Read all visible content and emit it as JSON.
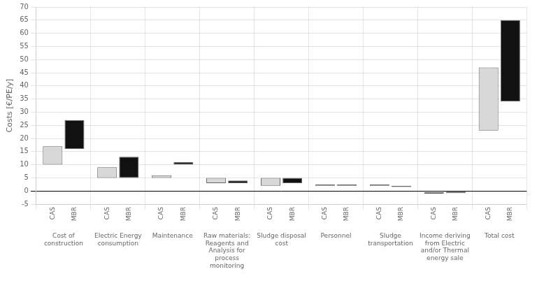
{
  "chart_data": {
    "type": "bar",
    "categories": [
      "Cost of\nconstruction",
      "Electric Energy\nconsumption",
      "Maintenance",
      "Raw materials:\nReagents and\nAnalysis for\nprocess\nmonitoring",
      "Sludge disposal\ncost",
      "Personnel",
      "Sludge\ntransportation",
      "Income deriving\nfrom Electric\nand/or Thermal\nenergy sale",
      "Total cost"
    ],
    "series": [
      {
        "name": "CAS",
        "color": "#d8d8d8",
        "values": [
          [
            10,
            17
          ],
          [
            5,
            9
          ],
          [
            5,
            6
          ],
          [
            3,
            5
          ],
          [
            2,
            5
          ],
          [
            2,
            2.5
          ],
          [
            2,
            2.5
          ],
          [
            -1.0,
            -0.5
          ],
          [
            23,
            47
          ]
        ]
      },
      {
        "name": "MBR",
        "color": "#111111",
        "values": [
          [
            16,
            27
          ],
          [
            5,
            13
          ],
          [
            10,
            11
          ],
          [
            3,
            4
          ],
          [
            3,
            5
          ],
          [
            2,
            2.5
          ],
          [
            1.5,
            2
          ],
          [
            -0.8,
            -0.3
          ],
          [
            34,
            65
          ]
        ]
      }
    ],
    "ylabel": "Costs [€/PE/y]",
    "ylim": [
      -5,
      70
    ],
    "yticks": [
      -5,
      0,
      5,
      10,
      15,
      20,
      25,
      30,
      35,
      40,
      45,
      50,
      55,
      60,
      65,
      70
    ],
    "grid": true
  }
}
